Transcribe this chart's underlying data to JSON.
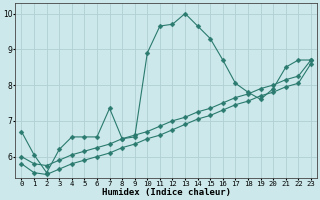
{
  "title": "",
  "xlabel": "Humidex (Indice chaleur)",
  "bg_color": "#cce8ea",
  "grid_color": "#b0d0d3",
  "line_color": "#2a7a6f",
  "xlim": [
    -0.5,
    23.5
  ],
  "ylim": [
    5.4,
    10.3
  ],
  "yticks": [
    6,
    7,
    8,
    9,
    10
  ],
  "xticks": [
    0,
    1,
    2,
    3,
    4,
    5,
    6,
    7,
    8,
    9,
    10,
    11,
    12,
    13,
    14,
    15,
    16,
    17,
    18,
    19,
    20,
    21,
    22,
    23
  ],
  "series1_x": [
    0,
    1,
    2,
    3,
    4,
    5,
    6,
    7,
    8,
    9,
    10,
    11,
    12,
    13,
    14,
    15,
    16,
    17,
    18,
    19,
    20,
    21,
    22,
    23
  ],
  "series1_y": [
    6.7,
    6.05,
    5.55,
    6.2,
    6.55,
    6.55,
    6.55,
    7.35,
    6.5,
    6.55,
    8.9,
    9.65,
    9.7,
    10.0,
    9.65,
    9.3,
    8.7,
    8.05,
    7.8,
    7.6,
    7.9,
    8.5,
    8.7,
    8.7
  ],
  "series2_x": [
    0,
    1,
    2,
    3,
    4,
    5,
    6,
    7,
    8,
    9,
    10,
    11,
    12,
    13,
    14,
    15,
    16,
    17,
    18,
    19,
    20,
    21,
    22,
    23
  ],
  "series2_y": [
    6.0,
    5.8,
    5.75,
    5.9,
    6.05,
    6.15,
    6.25,
    6.35,
    6.5,
    6.6,
    6.7,
    6.85,
    7.0,
    7.1,
    7.25,
    7.35,
    7.5,
    7.65,
    7.75,
    7.9,
    8.0,
    8.15,
    8.25,
    8.7
  ],
  "series3_x": [
    0,
    1,
    2,
    3,
    4,
    5,
    6,
    7,
    8,
    9,
    10,
    11,
    12,
    13,
    14,
    15,
    16,
    17,
    18,
    19,
    20,
    21,
    22,
    23
  ],
  "series3_y": [
    5.8,
    5.55,
    5.5,
    5.65,
    5.8,
    5.9,
    6.0,
    6.1,
    6.25,
    6.35,
    6.5,
    6.6,
    6.75,
    6.9,
    7.05,
    7.15,
    7.3,
    7.45,
    7.55,
    7.7,
    7.8,
    7.95,
    8.05,
    8.6
  ],
  "marker_size": 2.5,
  "line_width": 0.8
}
